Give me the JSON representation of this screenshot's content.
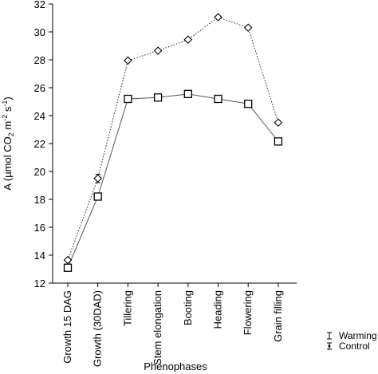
{
  "chart_data": {
    "type": "line",
    "xlabel": "Phenophases",
    "ylabel_parts": [
      "A (µmol CO",
      "2",
      " m",
      "-2",
      " s",
      "-1",
      ")"
    ],
    "ylim": [
      12,
      32
    ],
    "yticks": [
      12,
      14,
      16,
      18,
      20,
      22,
      24,
      26,
      28,
      30,
      32
    ],
    "grid": false,
    "legend_position": "bottom-right",
    "categories": [
      "Growth 15 DAG",
      "Growth (30DAD)",
      "Tillering",
      "Stem elongation",
      "Booting",
      "Heading",
      "Flowering",
      "Grain filling"
    ],
    "series": [
      {
        "name": "Warming",
        "marker": "square",
        "line": "solid",
        "values": [
          13.1,
          18.2,
          25.2,
          25.3,
          25.55,
          25.2,
          24.85,
          22.15
        ],
        "errors": [
          0.05,
          0.05,
          0.05,
          0.05,
          0.05,
          0.05,
          0.05,
          0.05
        ]
      },
      {
        "name": "Control",
        "marker": "diamond",
        "line": "dotted",
        "values": [
          13.65,
          19.5,
          27.95,
          28.65,
          29.45,
          31.05,
          30.3,
          23.5
        ],
        "errors": [
          0.05,
          0.3,
          0.05,
          0.05,
          0.05,
          0.05,
          0.05,
          0.05
        ]
      }
    ]
  }
}
